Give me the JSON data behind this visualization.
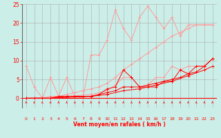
{
  "bg_color": "#cceee8",
  "grid_color": "#aaaaaa",
  "line_color_dark": "#ff0000",
  "line_color_light": "#ff9999",
  "xlabel": "Vent moyen/en rafales ( km/h )",
  "xlim": [
    -0.5,
    23.5
  ],
  "ylim": [
    0,
    25
  ],
  "xticks": [
    0,
    1,
    2,
    3,
    4,
    5,
    6,
    7,
    8,
    9,
    10,
    11,
    12,
    13,
    14,
    15,
    16,
    17,
    18,
    19,
    20,
    21,
    22,
    23
  ],
  "yticks": [
    0,
    5,
    10,
    15,
    20,
    25
  ],
  "series_light1": [
    [
      0,
      8.5
    ],
    [
      1,
      3.0
    ],
    [
      2,
      0.0
    ],
    [
      3,
      5.5
    ],
    [
      4,
      0.5
    ],
    [
      5,
      5.5
    ],
    [
      6,
      0.5
    ],
    [
      7,
      0.0
    ],
    [
      8,
      11.5
    ],
    [
      9,
      11.5
    ],
    [
      10,
      15.5
    ],
    [
      11,
      23.5
    ],
    [
      12,
      18.5
    ],
    [
      13,
      15.5
    ],
    [
      14,
      21.5
    ],
    [
      15,
      24.5
    ],
    [
      16,
      21.5
    ],
    [
      17,
      18.5
    ],
    [
      18,
      21.5
    ],
    [
      19,
      16.5
    ],
    [
      20,
      19.5
    ],
    [
      21,
      19.5
    ],
    [
      22,
      19.5
    ],
    [
      23,
      19.5
    ]
  ],
  "series_light2": [
    [
      0,
      0.0
    ],
    [
      1,
      0.0
    ],
    [
      2,
      0.0
    ],
    [
      3,
      0.5
    ],
    [
      4,
      0.5
    ],
    [
      5,
      1.0
    ],
    [
      6,
      1.5
    ],
    [
      7,
      2.0
    ],
    [
      8,
      2.5
    ],
    [
      9,
      3.0
    ],
    [
      10,
      4.0
    ],
    [
      11,
      5.5
    ],
    [
      12,
      7.5
    ],
    [
      13,
      9.0
    ],
    [
      14,
      10.5
    ],
    [
      15,
      12.0
    ],
    [
      16,
      13.5
    ],
    [
      17,
      15.0
    ],
    [
      18,
      16.5
    ],
    [
      19,
      17.5
    ],
    [
      20,
      18.5
    ],
    [
      21,
      19.5
    ],
    [
      22,
      19.5
    ],
    [
      23,
      19.5
    ]
  ],
  "series_light3": [
    [
      0,
      0.0
    ],
    [
      5,
      0.5
    ],
    [
      8,
      1.0
    ],
    [
      10,
      2.0
    ],
    [
      11,
      3.5
    ],
    [
      12,
      5.5
    ],
    [
      13,
      5.5
    ],
    [
      14,
      3.0
    ],
    [
      15,
      3.5
    ],
    [
      16,
      5.5
    ],
    [
      17,
      5.5
    ],
    [
      18,
      8.5
    ],
    [
      19,
      7.5
    ],
    [
      20,
      8.5
    ],
    [
      21,
      8.5
    ],
    [
      22,
      8.5
    ],
    [
      23,
      10.5
    ]
  ],
  "series_dark1": [
    [
      0,
      0.0
    ],
    [
      1,
      0.0
    ],
    [
      2,
      0.0
    ],
    [
      3,
      0.0
    ],
    [
      4,
      0.5
    ],
    [
      5,
      0.5
    ],
    [
      6,
      0.5
    ],
    [
      7,
      0.5
    ],
    [
      8,
      0.5
    ],
    [
      9,
      1.0
    ],
    [
      10,
      2.5
    ],
    [
      11,
      3.0
    ],
    [
      12,
      7.5
    ],
    [
      13,
      5.5
    ],
    [
      14,
      3.0
    ],
    [
      15,
      3.0
    ],
    [
      16,
      3.0
    ],
    [
      17,
      4.5
    ],
    [
      18,
      4.5
    ],
    [
      19,
      7.5
    ],
    [
      20,
      6.5
    ],
    [
      21,
      8.5
    ],
    [
      22,
      8.5
    ],
    [
      23,
      10.5
    ]
  ],
  "series_dark2": [
    [
      0,
      0.0
    ],
    [
      3,
      0.0
    ],
    [
      5,
      0.5
    ],
    [
      8,
      0.5
    ],
    [
      10,
      1.5
    ],
    [
      11,
      2.0
    ],
    [
      12,
      3.0
    ],
    [
      13,
      3.0
    ],
    [
      14,
      3.0
    ],
    [
      15,
      3.5
    ],
    [
      16,
      4.0
    ],
    [
      17,
      4.5
    ],
    [
      18,
      5.0
    ],
    [
      19,
      5.5
    ],
    [
      20,
      6.5
    ],
    [
      21,
      7.0
    ],
    [
      22,
      8.5
    ],
    [
      23,
      10.5
    ]
  ],
  "series_dark3": [
    [
      0,
      0.0
    ],
    [
      3,
      0.0
    ],
    [
      8,
      0.5
    ],
    [
      10,
      1.0
    ],
    [
      12,
      2.0
    ],
    [
      14,
      2.5
    ],
    [
      16,
      3.5
    ],
    [
      18,
      4.5
    ],
    [
      20,
      6.0
    ],
    [
      22,
      7.5
    ],
    [
      23,
      8.5
    ]
  ],
  "wind_angles": [
    90,
    90,
    90,
    90,
    90,
    90,
    90,
    90,
    135,
    135,
    180,
    180,
    135,
    225,
    270,
    90,
    90,
    90,
    45,
    45,
    45,
    45,
    45,
    45
  ]
}
